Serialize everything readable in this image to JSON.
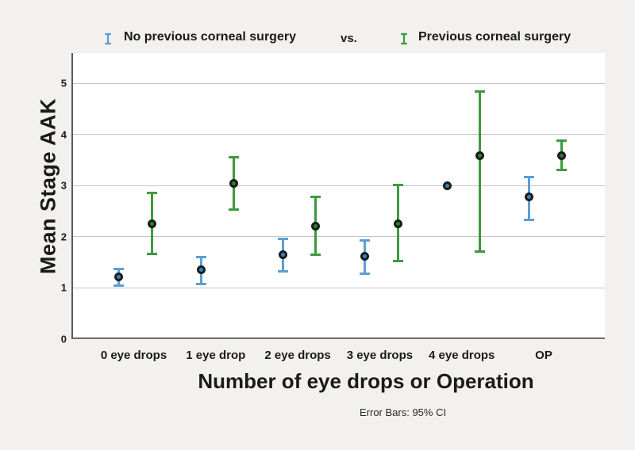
{
  "legend": {
    "series1": "No previous corneal surgery",
    "vs": "vs.",
    "series2": "Previous corneal surgery"
  },
  "y_axis": {
    "title": "Mean Stage AAK",
    "ticks": [
      "0",
      "1",
      "2",
      "3",
      "4",
      "5"
    ]
  },
  "x_axis": {
    "title": "Number of eye drops or Operation"
  },
  "footnote": "Error Bars: 95% CI",
  "colors": {
    "background": "#f2f1ef",
    "plot_background": "#ffffff",
    "gridline": "#c5c5c5",
    "axis": "#5a5a5a",
    "series1_blue": "#5c9fd6",
    "series1_marker_fill": "#2f86c8",
    "series2_green": "#3e9a3e",
    "series2_marker_fill": "#2e7d32",
    "marker_ring": "#1b1b1b",
    "text": "#1a1a1a"
  },
  "chart_data": {
    "type": "scatter",
    "subtype": "clustered-error-bar",
    "title": "",
    "xlabel": "Number of eye drops or Operation",
    "ylabel": "Mean Stage AAK",
    "footnote": "Error Bars: 95% CI",
    "legend_position": "top",
    "grid": "horizontal",
    "ylim": [
      0,
      5.59
    ],
    "y_ticks": [
      0,
      1,
      2,
      3,
      4,
      5
    ],
    "categories": [
      "0 eye drops",
      "1 eye drop",
      "2 eye drops",
      "3 eye drops",
      "4 eye drops",
      "OP"
    ],
    "series": [
      {
        "name": "No previous corneal surgery",
        "color": "#5c9fd6",
        "marker_fill": "#2f86c8",
        "means": [
          1.21,
          1.35,
          1.65,
          1.61,
          3.0,
          2.78
        ],
        "ci_low": [
          1.05,
          1.08,
          1.32,
          1.27,
          null,
          2.33
        ],
        "ci_high": [
          1.37,
          1.6,
          1.96,
          1.93,
          null,
          3.16
        ]
      },
      {
        "name": "Previous corneal surgery",
        "color": "#3e9a3e",
        "marker_fill": "#2e7d32",
        "means": [
          2.26,
          3.04,
          2.21,
          2.25,
          3.58,
          3.59
        ],
        "ci_low": [
          1.66,
          2.53,
          1.65,
          1.52,
          1.71,
          3.3
        ],
        "ci_high": [
          2.86,
          3.56,
          2.78,
          3.01,
          4.84,
          3.88
        ]
      }
    ]
  }
}
